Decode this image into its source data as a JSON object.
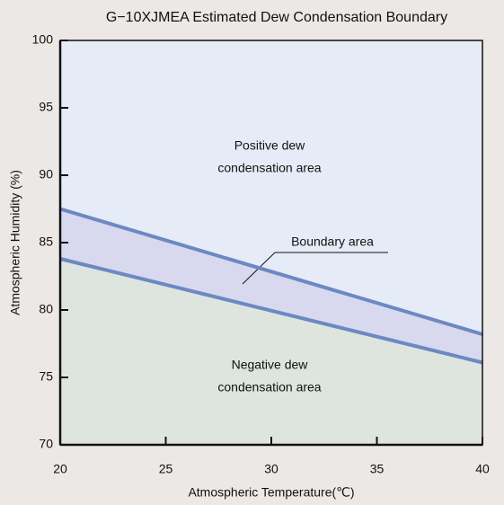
{
  "chart_data": {
    "type": "line",
    "title": "G−10XJMEA  Estimated Dew Condensation Boundary",
    "x_label": "Atmospheric Temperature(℃)",
    "y_label": "Atmospheric Humidity (%)",
    "x": [
      20,
      40
    ],
    "series": [
      {
        "color": "#6d88c2",
        "values": [
          87.5,
          78.2
        ]
      },
      {
        "color": "#6d88c2",
        "values": [
          83.8,
          76.1
        ]
      }
    ],
    "area_colors": [
      "#e5ecf7",
      "#d8d9ee",
      "#dee5df"
    ],
    "annotations": [
      "Positive dew",
      "condensation area",
      "Boundary area",
      "Negative dew",
      "condensation area"
    ],
    "xlim": [
      20,
      40
    ],
    "xticks": [
      20,
      25,
      30,
      35,
      40
    ],
    "ylim": [
      70,
      100
    ],
    "yticks": [
      70,
      75,
      80,
      85,
      90,
      95,
      100
    ],
    "grid": false
  }
}
